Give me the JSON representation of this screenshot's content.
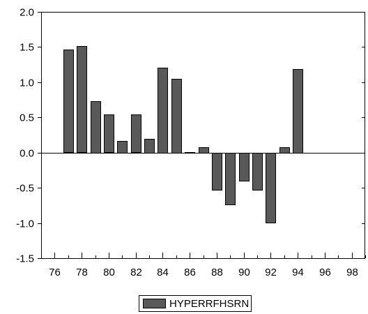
{
  "chart_data": {
    "type": "bar",
    "x": [
      77,
      78,
      79,
      80,
      81,
      82,
      83,
      84,
      85,
      86,
      87,
      88,
      89,
      90,
      91,
      92,
      93,
      94
    ],
    "series": [
      {
        "name": "HYPERRFHSRN",
        "values": [
          1.46,
          1.51,
          0.73,
          0.54,
          0.17,
          0.54,
          0.2,
          1.21,
          1.05,
          0.01,
          0.08,
          -0.53,
          -0.73,
          -0.4,
          -0.53,
          -0.99,
          0.08,
          1.19
        ]
      }
    ],
    "x_ticks": [
      76,
      78,
      80,
      82,
      84,
      86,
      88,
      90,
      92,
      94,
      96,
      98
    ],
    "x_tick_labels": [
      "76",
      "78",
      "80",
      "82",
      "84",
      "86",
      "88",
      "90",
      "92",
      "94",
      "96",
      "98"
    ],
    "y_ticks": [
      2.0,
      1.5,
      1.0,
      0.5,
      0.0,
      -0.5,
      -1.0,
      -1.5
    ],
    "y_tick_labels": [
      "2.0",
      "1.5",
      "1.0",
      "0.5",
      "0.0",
      "-0.5",
      "-1.0",
      "-1.5"
    ],
    "xlim": [
      75,
      99
    ],
    "ylim": [
      -1.5,
      2.0
    ],
    "title": "",
    "xlabel": "",
    "ylabel": "",
    "legend": {
      "position": "bottom-center",
      "entries": [
        "HYPERRFHSRN"
      ]
    },
    "grid": false,
    "colors": {
      "bar_fill": "#595959",
      "bar_stroke": "#000000",
      "axis": "#000000",
      "background": "#ffffff"
    }
  }
}
